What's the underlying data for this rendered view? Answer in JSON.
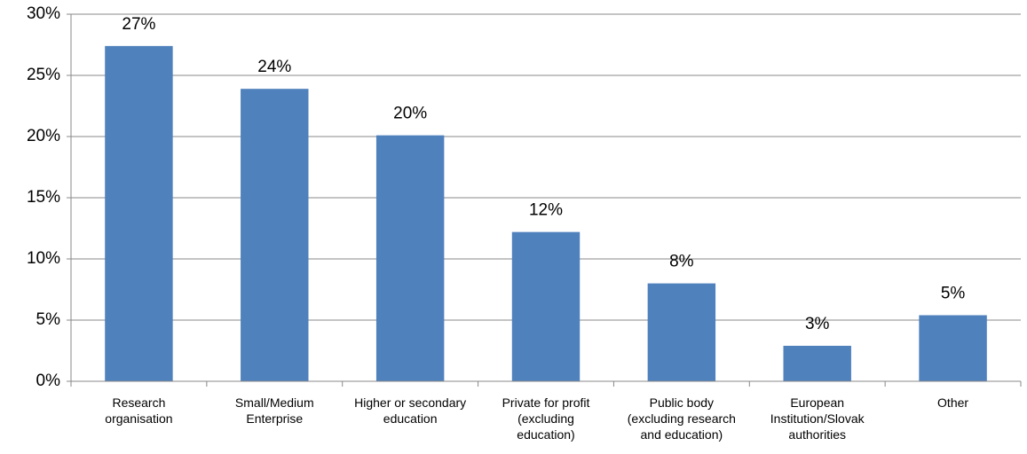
{
  "chart_data": {
    "type": "bar",
    "categories": [
      "Research\norganisation",
      "Small/Medium\nEnterprise",
      "Higher or secondary\neducation",
      "Private for profit\n(excluding\neducation)",
      "Public body\n(excluding research\nand education)",
      "European\nInstitution/Slovak\nauthorities",
      "Other"
    ],
    "values": [
      27.4,
      23.9,
      20.1,
      12.2,
      8.0,
      2.9,
      5.4
    ],
    "value_labels": [
      "27%",
      "24%",
      "20%",
      "12%",
      "8%",
      "3%",
      "5%"
    ],
    "color": "#4f81bd",
    "ylim": [
      0,
      30
    ],
    "yticks": [
      {
        "value": 0,
        "label": "0%"
      },
      {
        "value": 5,
        "label": "5%"
      },
      {
        "value": 10,
        "label": "10%"
      },
      {
        "value": 15,
        "label": "15%"
      },
      {
        "value": 20,
        "label": "20%"
      },
      {
        "value": 25,
        "label": "25%"
      },
      {
        "value": 30,
        "label": "30%"
      }
    ],
    "grid": true
  }
}
